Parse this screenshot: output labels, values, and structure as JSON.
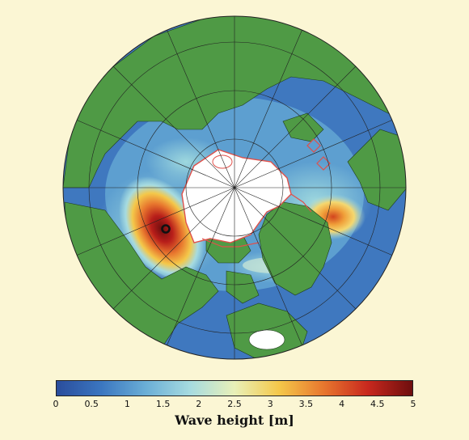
{
  "colorbar": {
    "title": "Wave height [m]",
    "min": 0,
    "max": 5,
    "ticks": [
      "0",
      "0.5",
      "1",
      "1.5",
      "2",
      "2.5",
      "3",
      "3.5",
      "4",
      "4.5",
      "5"
    ],
    "colors": [
      "#2a4d9c",
      "#3b76c0",
      "#6aaed6",
      "#a6dbe0",
      "#e8f0b8",
      "#f4c84a",
      "#e8772e",
      "#c8281e",
      "#6e0e0e"
    ]
  },
  "colors": {
    "background": "#fbf6d4",
    "land": "#4f9a45",
    "sea_ice": "#ffffff",
    "ice_edge": "#e0504a",
    "graticule": "#222222",
    "marker": "#111111"
  }
}
